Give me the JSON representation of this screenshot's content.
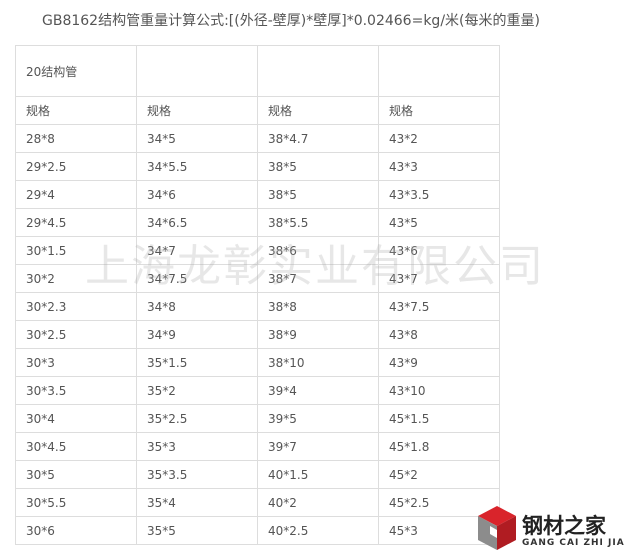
{
  "header": {
    "title": "GB8162结构管重量计算公式:[(外径-壁厚)*壁厚]*0.02466=kg/米(每米的重量)"
  },
  "table": {
    "group_label": "20结构管",
    "columns": [
      "规格",
      "规格",
      "规格",
      "规格"
    ],
    "rows": [
      [
        "28*8",
        "34*5",
        "38*4.7",
        "43*2"
      ],
      [
        "29*2.5",
        "34*5.5",
        "38*5",
        "43*3"
      ],
      [
        "29*4",
        "34*6",
        "38*5",
        "43*3.5"
      ],
      [
        "29*4.5",
        "34*6.5",
        "38*5.5",
        "43*5"
      ],
      [
        "30*1.5",
        "34*7",
        "38*6",
        "43*6"
      ],
      [
        "30*2",
        "34*7.5",
        "38*7",
        "43*7"
      ],
      [
        "30*2.3",
        "34*8",
        "38*8",
        "43*7.5"
      ],
      [
        "30*2.5",
        "34*9",
        "38*9",
        "43*8"
      ],
      [
        "30*3",
        "35*1.5",
        "38*10",
        "43*9"
      ],
      [
        "30*3.5",
        "35*2",
        "39*4",
        "43*10"
      ],
      [
        "30*4",
        "35*2.5",
        "39*5",
        "45*1.5"
      ],
      [
        "30*4.5",
        "35*3",
        "39*7",
        "45*1.8"
      ],
      [
        "30*5",
        "35*3.5",
        "40*1.5",
        "45*2"
      ],
      [
        "30*5.5",
        "35*4",
        "40*2",
        "45*2.5"
      ],
      [
        "30*6",
        "35*5",
        "40*2.5",
        "45*3"
      ]
    ]
  },
  "watermark": "上海龙彰实业有限公司",
  "logo": {
    "name": "钢材之家",
    "subtitle": "GANG CAI ZHI JIA"
  }
}
